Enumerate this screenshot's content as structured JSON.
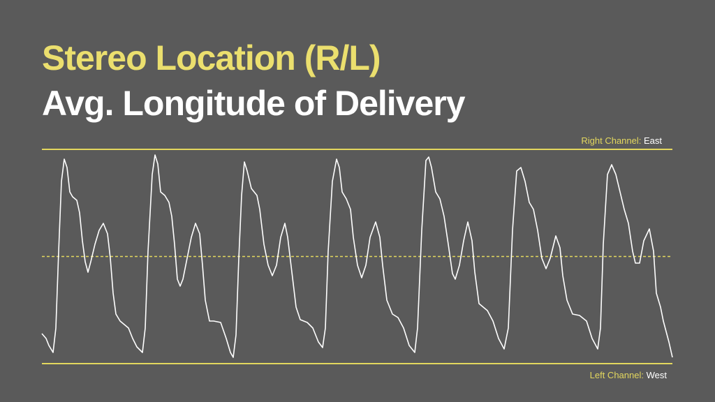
{
  "chart_data": {
    "type": "line",
    "title": "Stereo Location (R/L)",
    "subtitle": "Avg. Longitude of Delivery",
    "title_color": "#ebdf6e",
    "subtitle_color": "#ffffff",
    "upper_label": {
      "channel": "Right Channel:",
      "direction": "East"
    },
    "lower_label": {
      "channel": "Left Channel:",
      "direction": "West"
    },
    "reference_color": "#e3d75e",
    "xlim": [
      0,
      903
    ],
    "ylim": [
      0,
      307
    ],
    "x": [
      0,
      6,
      10,
      16,
      20,
      24,
      28,
      32,
      36,
      40,
      44,
      50,
      54,
      58,
      62,
      66,
      70,
      76,
      82,
      88,
      94,
      98,
      102,
      106,
      112,
      118,
      124,
      130,
      136,
      144,
      148,
      152,
      158,
      162,
      166,
      170,
      176,
      182,
      186,
      190,
      194,
      198,
      202,
      208,
      214,
      220,
      226,
      230,
      234,
      240,
      246,
      256,
      264,
      270,
      274,
      278,
      282,
      286,
      290,
      294,
      300,
      308,
      312,
      318,
      324,
      330,
      336,
      342,
      348,
      352,
      358,
      364,
      370,
      380,
      388,
      396,
      402,
      406,
      410,
      416,
      422,
      426,
      430,
      436,
      442,
      446,
      452,
      458,
      464,
      470,
      478,
      484,
      488,
      494,
      502,
      510,
      518,
      526,
      534,
      538,
      544,
      550,
      554,
      558,
      564,
      570,
      576,
      582,
      588,
      592,
      598,
      604,
      610,
      616,
      620,
      626,
      632,
      638,
      646,
      654,
      662,
      668,
      674,
      680,
      686,
      692,
      698,
      704,
      710,
      716,
      722,
      728,
      736,
      742,
      746,
      752,
      760,
      770,
      780,
      788,
      796,
      800,
      804,
      810,
      816,
      822,
      828,
      834,
      840,
      846,
      850,
      856,
      862,
      870,
      876,
      880,
      886,
      890,
      898,
      903
    ],
    "series": [
      {
        "color": "#ffffff",
        "values": [
          43,
          36,
          26,
          16,
          51,
          161,
          261,
          293,
          281,
          246,
          239,
          234,
          216,
          176,
          146,
          131,
          146,
          171,
          191,
          201,
          186,
          151,
          101,
          71,
          61,
          56,
          51,
          36,
          24,
          16,
          51,
          161,
          271,
          299,
          286,
          246,
          241,
          231,
          211,
          171,
          121,
          111,
          121,
          151,
          181,
          201,
          186,
          141,
          91,
          61,
          61,
          59,
          36,
          16,
          9,
          41,
          151,
          241,
          289,
          276,
          251,
          241,
          221,
          171,
          141,
          126,
          141,
          181,
          201,
          181,
          131,
          81,
          63,
          59,
          51,
          31,
          23,
          51,
          161,
          261,
          293,
          281,
          246,
          236,
          221,
          181,
          141,
          123,
          141,
          181,
          203,
          181,
          141,
          91,
          71,
          66,
          51,
          26,
          16,
          51,
          191,
          291,
          296,
          281,
          246,
          236,
          211,
          171,
          129,
          121,
          141,
          176,
          203,
          176,
          131,
          86,
          81,
          76,
          61,
          36,
          21,
          51,
          191,
          276,
          281,
          261,
          231,
          221,
          191,
          151,
          136,
          151,
          183,
          166,
          126,
          91,
          71,
          69,
          61,
          36,
          21,
          51,
          171,
          271,
          285,
          271,
          246,
          221,
          201,
          161,
          144,
          144,
          176,
          193,
          161,
          101,
          81,
          61,
          31,
          9
        ]
      }
    ]
  }
}
